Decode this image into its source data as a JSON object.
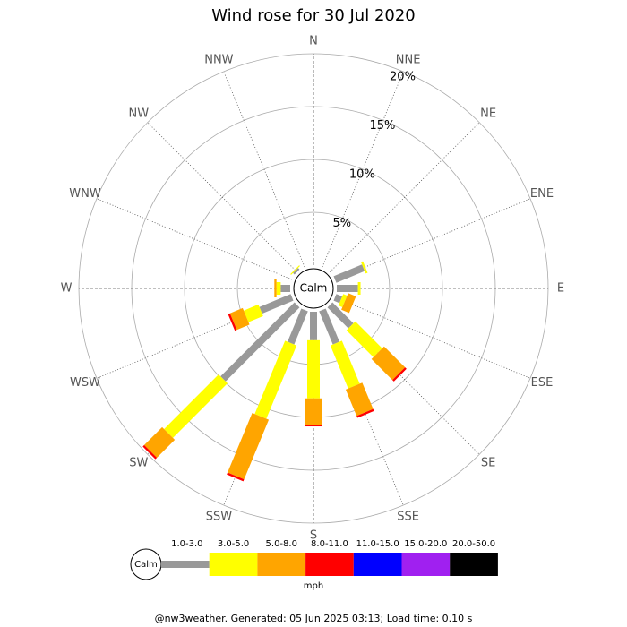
{
  "chart_data": {
    "type": "windrose",
    "title": "Wind rose for 30 Jul 2020",
    "categories": [
      "N",
      "NNE",
      "NE",
      "ENE",
      "E",
      "ESE",
      "SE",
      "SSE",
      "S",
      "SSW",
      "SW",
      "WSW",
      "W",
      "WNW",
      "NW",
      "NNW"
    ],
    "series": [
      {
        "name": "1.0-3.0",
        "color": "#999999",
        "values": [
          0,
          0,
          0,
          2.9,
          2.0,
          0.6,
          2.8,
          3.4,
          2.7,
          3.4,
          9.9,
          3.2,
          0.9,
          0,
          0.2,
          0
        ]
      },
      {
        "name": "3.0-5.0",
        "color": "#ffff00",
        "values": [
          0,
          0,
          0,
          0.2,
          0.25,
          0.4,
          3.6,
          4.4,
          5.5,
          7.5,
          7.3,
          1.5,
          0.4,
          0,
          0.1,
          0
        ]
      },
      {
        "name": "5.0-8.0",
        "color": "#ffa500",
        "values": [
          0,
          0,
          0,
          0,
          0,
          0.8,
          2.8,
          2.7,
          2.5,
          6.1,
          2.4,
          1.3,
          0.2,
          0,
          0,
          0
        ]
      },
      {
        "name": "8.0-11.0",
        "color": "#ff0000",
        "values": [
          0,
          0,
          0,
          0,
          0,
          0,
          0.2,
          0.2,
          0.15,
          0.2,
          0.2,
          0.2,
          0,
          0,
          0,
          0
        ]
      },
      {
        "name": "11.0-15.0",
        "color": "#0000ff",
        "values": [
          0,
          0,
          0,
          0,
          0,
          0,
          0,
          0,
          0,
          0,
          0,
          0,
          0,
          0,
          0,
          0
        ]
      },
      {
        "name": "15.0-20.0",
        "color": "#a020f0",
        "values": [
          0,
          0,
          0,
          0,
          0,
          0,
          0,
          0,
          0,
          0,
          0,
          0,
          0,
          0,
          0,
          0
        ]
      },
      {
        "name": "20.0-50.0",
        "color": "#000000",
        "values": [
          0,
          0,
          0,
          0,
          0,
          0,
          0,
          0,
          0,
          0,
          0,
          0,
          0,
          0,
          0,
          0
        ]
      }
    ],
    "rlim": [
      0,
      20
    ],
    "rticks": [
      {
        "value": 5,
        "label": "5%"
      },
      {
        "value": 10,
        "label": "10%"
      },
      {
        "value": 15,
        "label": "15%"
      },
      {
        "value": 20,
        "label": "20%"
      }
    ],
    "calm_label": "Calm",
    "legend_title": "mph",
    "footer": "@nw3weather. Generated: 05 Jun 2025 03:13; Load time: 0.10 s"
  }
}
